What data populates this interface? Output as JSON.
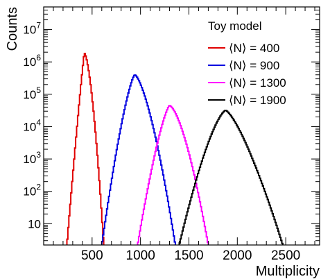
{
  "chart_data": {
    "type": "line",
    "title": "",
    "xlabel": "Multiplicity",
    "ylabel": "Counts",
    "xlim": [
      0,
      2850
    ],
    "ylim": [
      2.2,
      50000000
    ],
    "log_y": true,
    "grid": false,
    "legend": {
      "title": "Toy model",
      "placement": "top-right",
      "entries": [
        "⟨N⟩ = 400",
        "⟨N⟩ = 900",
        "⟨N⟩ = 1300",
        "⟨N⟩ = 1900"
      ]
    },
    "x_ticks": [
      {
        "value": 500,
        "label": "500"
      },
      {
        "value": 1000,
        "label": "1000"
      },
      {
        "value": 1500,
        "label": "1500"
      },
      {
        "value": 2000,
        "label": "2000"
      },
      {
        "value": 2500,
        "label": "2500"
      }
    ],
    "y_ticks": [
      {
        "value": 10,
        "base": "10",
        "exp": ""
      },
      {
        "value": 100,
        "base": "10",
        "exp": "2"
      },
      {
        "value": 1000,
        "base": "10",
        "exp": "3"
      },
      {
        "value": 10000,
        "base": "10",
        "exp": "4"
      },
      {
        "value": 100000,
        "base": "10",
        "exp": "5"
      },
      {
        "value": 1000000,
        "base": "10",
        "exp": "6"
      },
      {
        "value": 10000000,
        "base": "10",
        "exp": "7"
      }
    ],
    "series": [
      {
        "name": "⟨N⟩ = 400",
        "color": "#e00000",
        "mean": 420,
        "peak": 1900000,
        "lo": 240,
        "hi": 620,
        "left_edge": 1.1,
        "right_edge": 1.6
      },
      {
        "name": "⟨N⟩ = 900",
        "color": "#0000e0",
        "mean": 940,
        "peak": 400000,
        "lo": 600,
        "hi": 1360,
        "left_edge": 1.35,
        "right_edge": 1.5
      },
      {
        "name": "⟨N⟩ = 1300",
        "color": "#ff00ff",
        "mean": 1300,
        "peak": 45000,
        "lo": 970,
        "hi": 1700,
        "left_edge": 1.35,
        "right_edge": 1.55
      },
      {
        "name": "⟨N⟩ = 1900",
        "color": "#000000",
        "mean": 1880,
        "peak": 32000,
        "lo": 1400,
        "hi": 2470,
        "left_edge": 1.45,
        "right_edge": 1.35
      }
    ]
  }
}
